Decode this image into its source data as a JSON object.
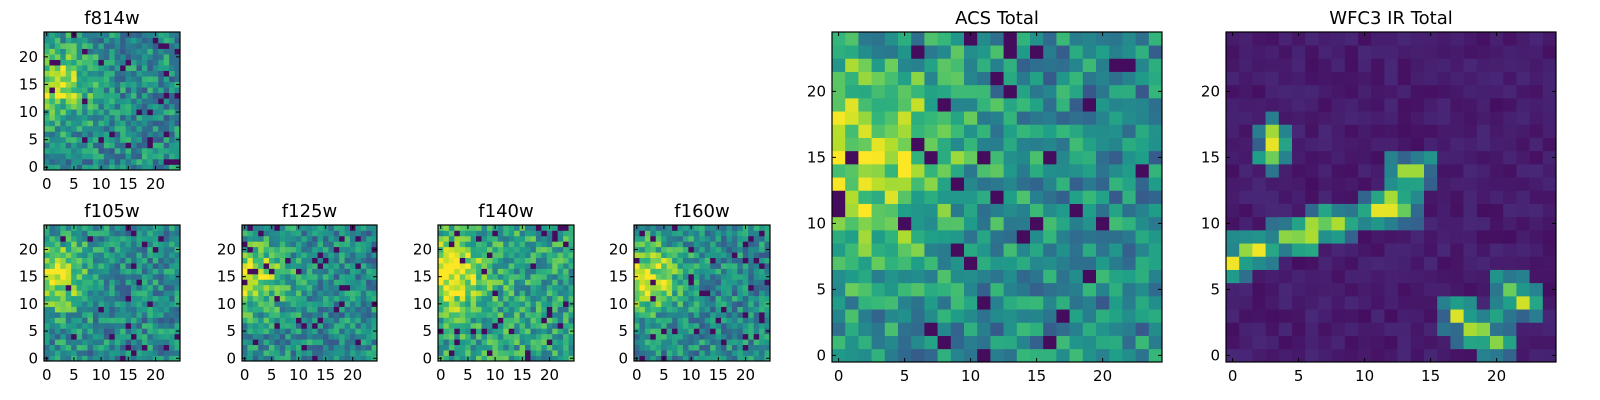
{
  "chart_data": [
    {
      "type": "heatmap",
      "title": "f814w",
      "x_ticks": [
        "0",
        "5",
        "10",
        "15",
        "20"
      ],
      "y_ticks": [
        "0",
        "5",
        "10",
        "15",
        "20"
      ],
      "xlim": [
        0,
        25
      ],
      "ylim": [
        0,
        25
      ],
      "colormap": "viridis",
      "grid": false
    },
    {
      "type": "heatmap",
      "title": "f105w",
      "x_ticks": [
        "0",
        "5",
        "10",
        "15",
        "20"
      ],
      "y_ticks": [
        "0",
        "5",
        "10",
        "15",
        "20"
      ],
      "xlim": [
        0,
        25
      ],
      "ylim": [
        0,
        25
      ],
      "colormap": "viridis",
      "grid": false
    },
    {
      "type": "heatmap",
      "title": "f125w",
      "x_ticks": [
        "0",
        "5",
        "10",
        "15",
        "20"
      ],
      "y_ticks": [
        "0",
        "5",
        "10",
        "15",
        "20"
      ],
      "xlim": [
        0,
        25
      ],
      "ylim": [
        0,
        25
      ],
      "colormap": "viridis",
      "grid": false
    },
    {
      "type": "heatmap",
      "title": "f140w",
      "x_ticks": [
        "0",
        "5",
        "10",
        "15",
        "20"
      ],
      "y_ticks": [
        "0",
        "5",
        "10",
        "15",
        "20"
      ],
      "xlim": [
        0,
        25
      ],
      "ylim": [
        0,
        25
      ],
      "colormap": "viridis",
      "grid": false
    },
    {
      "type": "heatmap",
      "title": "f160w",
      "x_ticks": [
        "0",
        "5",
        "10",
        "15",
        "20"
      ],
      "y_ticks": [
        "0",
        "5",
        "10",
        "15",
        "20"
      ],
      "xlim": [
        0,
        25
      ],
      "ylim": [
        0,
        25
      ],
      "colormap": "viridis",
      "grid": false
    },
    {
      "type": "heatmap",
      "title": "ACS Total",
      "x_ticks": [
        "0",
        "5",
        "10",
        "15",
        "20"
      ],
      "y_ticks": [
        "0",
        "5",
        "10",
        "15",
        "20"
      ],
      "xlim": [
        0,
        25
      ],
      "ylim": [
        0,
        25
      ],
      "colormap": "viridis",
      "grid": false
    },
    {
      "type": "heatmap",
      "title": "WFC3 IR Total",
      "x_ticks": [
        "0",
        "5",
        "10",
        "15",
        "20"
      ],
      "y_ticks": [
        "0",
        "5",
        "10",
        "15",
        "20"
      ],
      "xlim": [
        0,
        25
      ],
      "ylim": [
        0,
        25
      ],
      "colormap": "viridis",
      "grid": false
    }
  ]
}
